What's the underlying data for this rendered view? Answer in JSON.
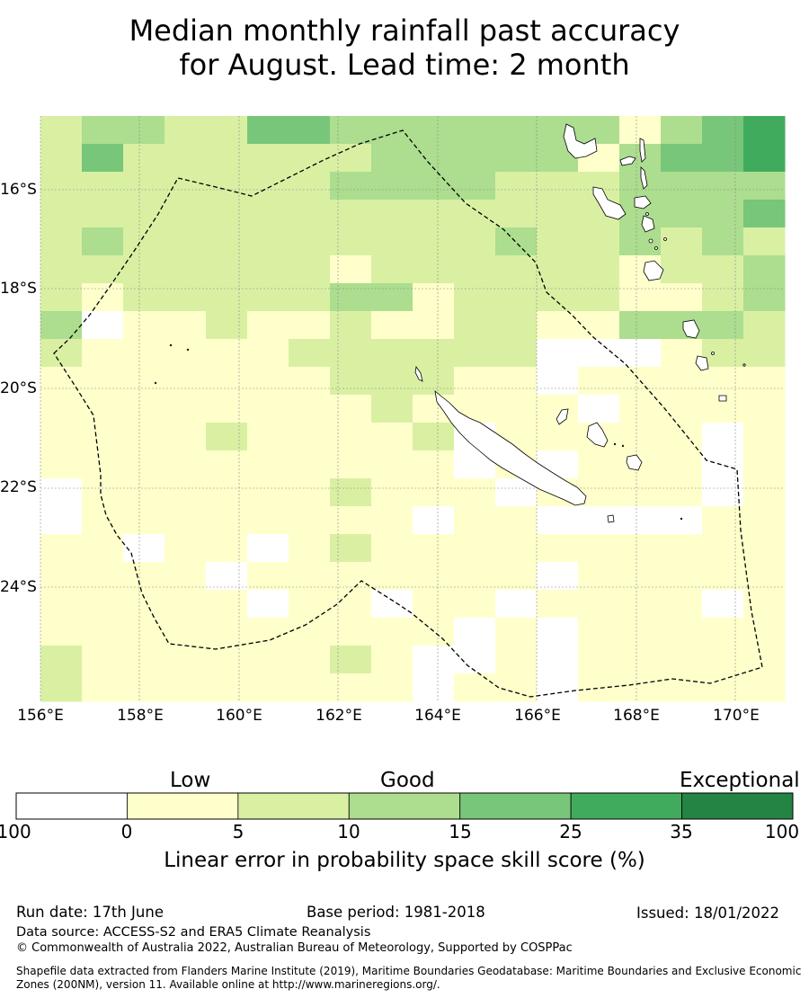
{
  "title": {
    "line1": "Median monthly rainfall past accuracy",
    "line2": "for August. Lead time: 2 month"
  },
  "map": {
    "lon_labels": [
      "156°E",
      "158°E",
      "160°E",
      "162°E",
      "164°E",
      "166°E",
      "168°E",
      "170°E"
    ],
    "lat_labels": [
      "16°S",
      "18°S",
      "20°S",
      "22°S",
      "24°S"
    ],
    "colors": {
      "white": "#ffffff",
      "lightyellow": "#ffffcc",
      "palegreen": "#d9f0a3",
      "lightgreen": "#addd8e",
      "midgreen": "#78c679",
      "green": "#41ab5d",
      "darkgreen": "#238443"
    },
    "boundary_style": "dashed",
    "gridlines": true
  },
  "colorbar": {
    "category_labels": [
      "Low",
      "Good",
      "Exceptional"
    ],
    "ticks": [
      "-100",
      "0",
      "5",
      "10",
      "15",
      "25",
      "35",
      "100"
    ],
    "colors": [
      "#ffffff",
      "#ffffcc",
      "#d9f0a3",
      "#addd8e",
      "#78c679",
      "#41ab5d",
      "#238443"
    ],
    "title": "Linear error in probability space skill score (%)"
  },
  "footer": {
    "run_date": "Run date: 17th June",
    "base_period": "Base period: 1981-2018",
    "issued": "Issued: 18/01/2022",
    "data_source": "Data source: ACCESS-S2 and ERA5 Climate Reanalysis",
    "copyright": "© Commonwealth of Australia 2022, Australian Bureau of Meteorology, Supported by COSPPac",
    "shapefile": "Shapefile data extracted from Flanders Marine Institute (2019), Maritime Boundaries Geodatabase: Maritime Boundaries and Exclusive Economic Zones (200NM), version 11. Available online at http://www.marineregions.org/."
  }
}
